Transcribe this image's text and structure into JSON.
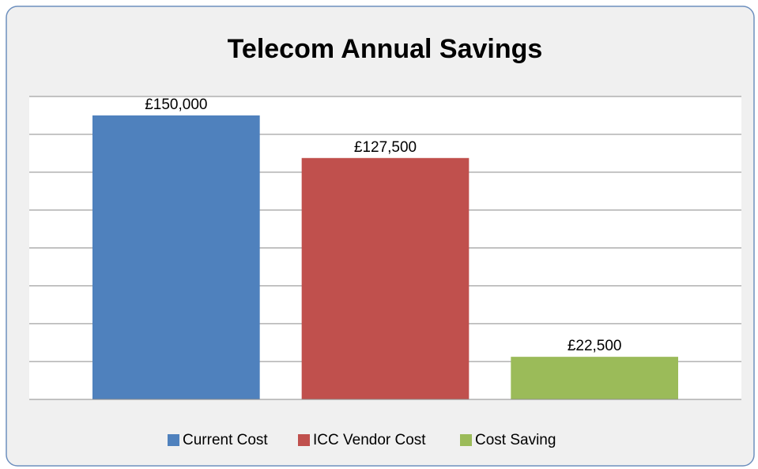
{
  "chart_data": {
    "type": "bar",
    "title": "Telecom Annual Savings",
    "categories": [
      null
    ],
    "series": [
      {
        "name": "Current Cost",
        "color": "#4f81bd",
        "values": [
          150000
        ],
        "value_labels": [
          "£150,000"
        ]
      },
      {
        "name": "ICC Vendor Cost",
        "color": "#c0504d",
        "values": [
          127500
        ],
        "value_labels": [
          "£127,500"
        ]
      },
      {
        "name": "Cost Saving",
        "color": "#9bbb59",
        "values": [
          22500
        ],
        "value_labels": [
          "£22,500"
        ]
      }
    ],
    "ylim": [
      0,
      160000
    ],
    "yticks": [
      0,
      20000,
      40000,
      60000,
      80000,
      100000,
      120000,
      140000,
      160000
    ],
    "ytick_labels": false,
    "grid": true,
    "legend": "bottom"
  }
}
